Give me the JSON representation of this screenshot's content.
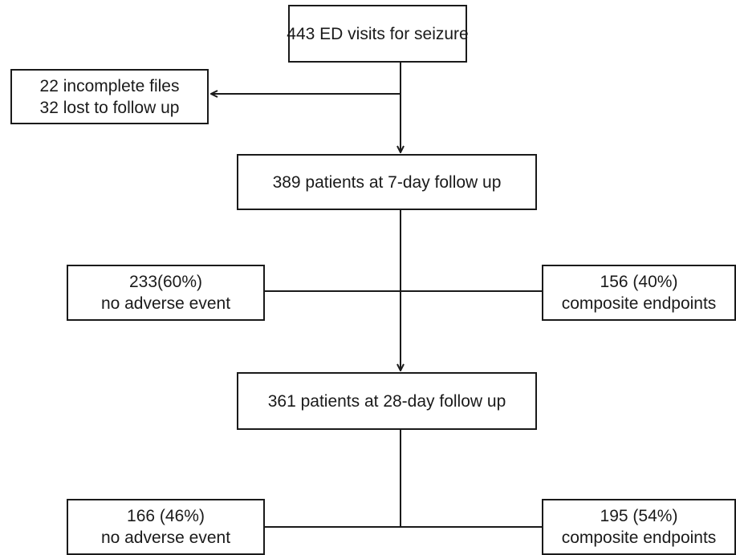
{
  "flowchart": {
    "start": "443 ED visits for seizure",
    "excluded": [
      "22 incomplete files",
      "32 lost to follow up"
    ],
    "followup_7day": {
      "label": "389 patients at 7-day follow up",
      "no_event": [
        "233(60%)",
        "no adverse event"
      ],
      "composite": [
        "156 (40%)",
        "composite endpoints"
      ]
    },
    "followup_28day": {
      "label": "361 patients at 28-day follow up",
      "no_event": [
        "166 (46%)",
        "no adverse event"
      ],
      "composite": [
        "195 (54%)",
        "composite endpoints"
      ]
    }
  }
}
